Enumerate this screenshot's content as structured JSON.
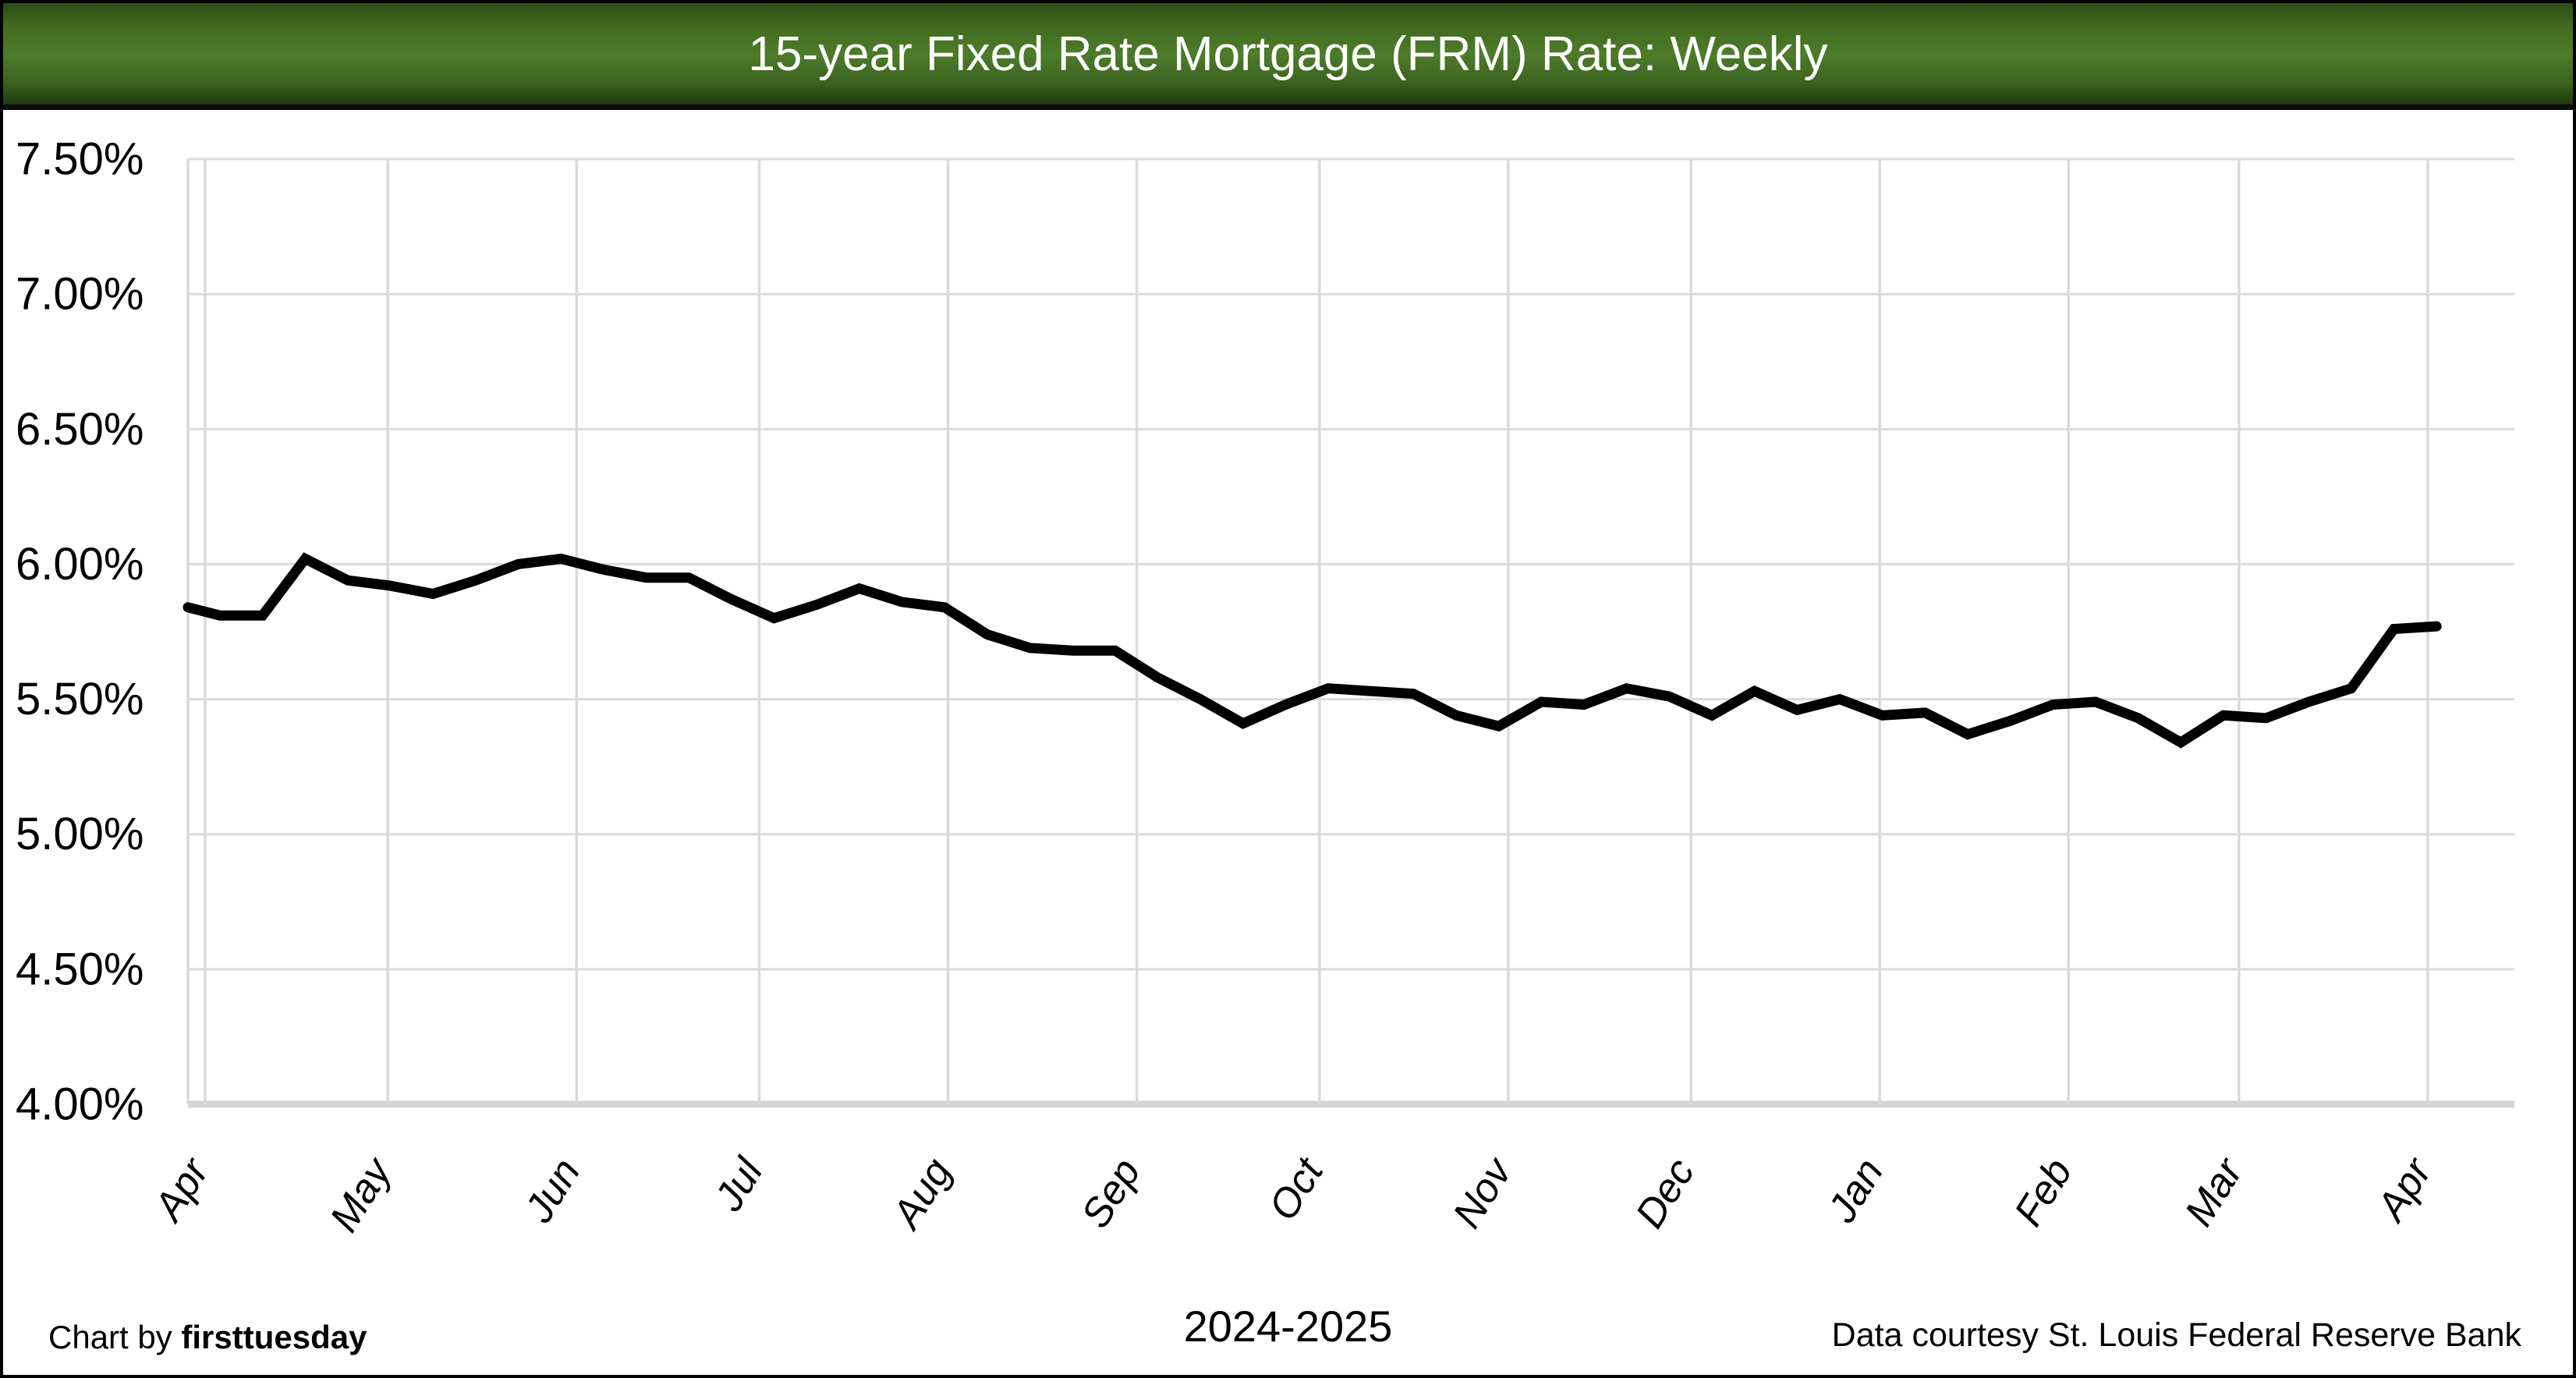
{
  "header": {
    "title": "15-year Fixed Rate Mortgage (FRM) Rate: Weekly"
  },
  "footer": {
    "credit_prefix": "Chart by ",
    "credit_brand": "firsttuesday",
    "period": "2024-2025",
    "source": "Data courtesy St. Louis Federal Reserve Bank"
  },
  "colors": {
    "header_green_mid": "#4d7c2a",
    "header_green_dark": "#1d3a0c",
    "grid": "#dadada",
    "axis": "#d4d4d4",
    "line": "#000000",
    "title_text": "#ffffff"
  },
  "chart_data": {
    "type": "line",
    "title": "15-year Fixed Rate Mortgage (FRM) Rate: Weekly",
    "xlabel": "2024-2025",
    "ylabel": "",
    "ylim": [
      4.0,
      7.5
    ],
    "y_ticks": [
      "7.50%",
      "7.00%",
      "6.50%",
      "6.00%",
      "5.50%",
      "5.00%",
      "4.50%",
      "4.00%"
    ],
    "y_tick_values": [
      7.5,
      7.0,
      6.5,
      6.0,
      5.5,
      5.0,
      4.5,
      4.0
    ],
    "x_labels": [
      "Apr",
      "May",
      "Jun",
      "Jul",
      "Aug",
      "Sep",
      "Oct",
      "Nov",
      "Dec",
      "Jan",
      "Feb",
      "Mar",
      "Apr"
    ],
    "days_in_month": [
      30,
      31,
      30,
      31,
      31,
      30,
      31,
      30,
      31,
      31,
      28,
      31
    ],
    "grid": true,
    "legend": "none",
    "left_edge_value": 5.84,
    "series": [
      {
        "name": "15-year FRM rate (weekly)",
        "values": [
          5.81,
          5.81,
          6.02,
          5.94,
          5.92,
          5.89,
          5.94,
          6.0,
          6.02,
          5.98,
          5.95,
          5.95,
          5.87,
          5.8,
          5.85,
          5.91,
          5.86,
          5.84,
          5.74,
          5.69,
          5.68,
          5.68,
          5.58,
          5.5,
          5.41,
          5.48,
          5.54,
          5.53,
          5.52,
          5.44,
          5.4,
          5.49,
          5.48,
          5.54,
          5.51,
          5.44,
          5.53,
          5.46,
          5.5,
          5.44,
          5.45,
          5.37,
          5.42,
          5.48,
          5.49,
          5.43,
          5.34,
          5.44,
          5.43,
          5.49,
          5.54,
          5.76,
          5.77
        ]
      }
    ]
  }
}
